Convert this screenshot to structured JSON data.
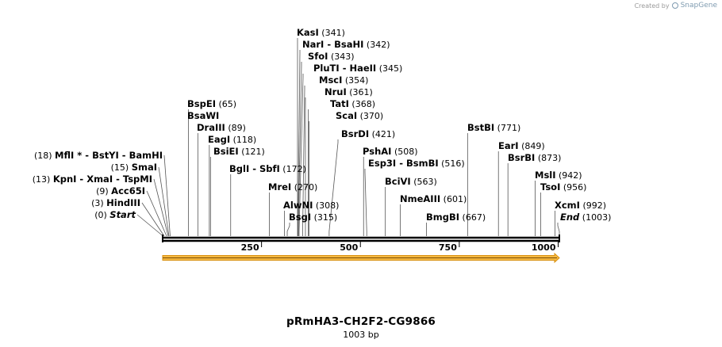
{
  "credit": {
    "prefix": "Created by",
    "brand": "SnapGene"
  },
  "plasmid": {
    "name": "pRmHA3-CH2F2-CG9866",
    "length_label": "1003 bp"
  },
  "sequence_length": 1003,
  "axis_ticks": [
    {
      "value": 250,
      "label": "250"
    },
    {
      "value": 500,
      "label": "500"
    },
    {
      "value": 750,
      "label": "750"
    },
    {
      "value": 1000,
      "label": "1000"
    }
  ],
  "sites_left": [
    {
      "names": [
        "MflI *",
        "BstYI",
        "BamHI"
      ],
      "pos": 18,
      "pos_label": "(18)"
    },
    {
      "names": [
        "SmaI"
      ],
      "pos": 15,
      "pos_label": "(15)"
    },
    {
      "names": [
        "KpnI",
        "XmaI",
        "TspMI"
      ],
      "pos": 13,
      "pos_label": "(13)"
    },
    {
      "names": [
        "Acc65I"
      ],
      "pos": 9,
      "pos_label": "(9)"
    },
    {
      "names": [
        "HindIII"
      ],
      "pos": 3,
      "pos_label": "(3)"
    },
    {
      "names": [
        "Start"
      ],
      "pos": 0,
      "pos_label": "(0)",
      "italic": true
    }
  ],
  "sites_right": [
    {
      "names": [
        "KasI"
      ],
      "pos": 341,
      "pos_label": "(341)"
    },
    {
      "names": [
        "NarI",
        "BsaHI"
      ],
      "pos": 342,
      "pos_label": "(342)"
    },
    {
      "names": [
        "SfoI"
      ],
      "pos": 343,
      "pos_label": "(343)"
    },
    {
      "names": [
        "PluTI",
        "HaeII"
      ],
      "pos": 345,
      "pos_label": "(345)"
    },
    {
      "names": [
        "MscI"
      ],
      "pos": 354,
      "pos_label": "(354)"
    },
    {
      "names": [
        "NruI"
      ],
      "pos": 361,
      "pos_label": "(361)"
    },
    {
      "names": [
        "TatI"
      ],
      "pos": 368,
      "pos_label": "(368)"
    },
    {
      "names": [
        "ScaI"
      ],
      "pos": 370,
      "pos_label": "(370)"
    },
    {
      "names": [
        "BspEI"
      ],
      "pos": 65,
      "pos_label": "(65)"
    },
    {
      "names": [
        "BsaWI"
      ],
      "pos": 65,
      "pos_label": ""
    },
    {
      "names": [
        "DraIII"
      ],
      "pos": 89,
      "pos_label": "(89)"
    },
    {
      "names": [
        "EagI"
      ],
      "pos": 118,
      "pos_label": "(118)"
    },
    {
      "names": [
        "BsiEI"
      ],
      "pos": 121,
      "pos_label": "(121)"
    },
    {
      "names": [
        "BglI",
        "SbfI"
      ],
      "pos": 172,
      "pos_label": "(172)"
    },
    {
      "names": [
        "MreI"
      ],
      "pos": 270,
      "pos_label": "(270)"
    },
    {
      "names": [
        "AlwNI"
      ],
      "pos": 308,
      "pos_label": "(308)"
    },
    {
      "names": [
        "BsgI"
      ],
      "pos": 315,
      "pos_label": "(315)"
    },
    {
      "names": [
        "BsrDI"
      ],
      "pos": 421,
      "pos_label": "(421)"
    },
    {
      "names": [
        "PshAI"
      ],
      "pos": 508,
      "pos_label": "(508)"
    },
    {
      "names": [
        "Esp3I",
        "BsmBI"
      ],
      "pos": 516,
      "pos_label": "(516)"
    },
    {
      "names": [
        "BciVI"
      ],
      "pos": 563,
      "pos_label": "(563)"
    },
    {
      "names": [
        "NmeAIII"
      ],
      "pos": 601,
      "pos_label": "(601)"
    },
    {
      "names": [
        "BmgBI"
      ],
      "pos": 667,
      "pos_label": "(667)"
    },
    {
      "names": [
        "BstBI"
      ],
      "pos": 771,
      "pos_label": "(771)"
    },
    {
      "names": [
        "EarI"
      ],
      "pos": 849,
      "pos_label": "(849)"
    },
    {
      "names": [
        "BsrBI"
      ],
      "pos": 873,
      "pos_label": "(873)"
    },
    {
      "names": [
        "MslI"
      ],
      "pos": 942,
      "pos_label": "(942)"
    },
    {
      "names": [
        "TsoI"
      ],
      "pos": 956,
      "pos_label": "(956)"
    },
    {
      "names": [
        "XcmI"
      ],
      "pos": 992,
      "pos_label": "(992)"
    },
    {
      "names": [
        "End"
      ],
      "pos": 1003,
      "pos_label": "(1003)",
      "italic": true
    }
  ],
  "colors": {
    "backbone": "#000000",
    "feature_fill": "#f5b942",
    "feature_stroke": "#d9900f",
    "leader": "#555555"
  }
}
